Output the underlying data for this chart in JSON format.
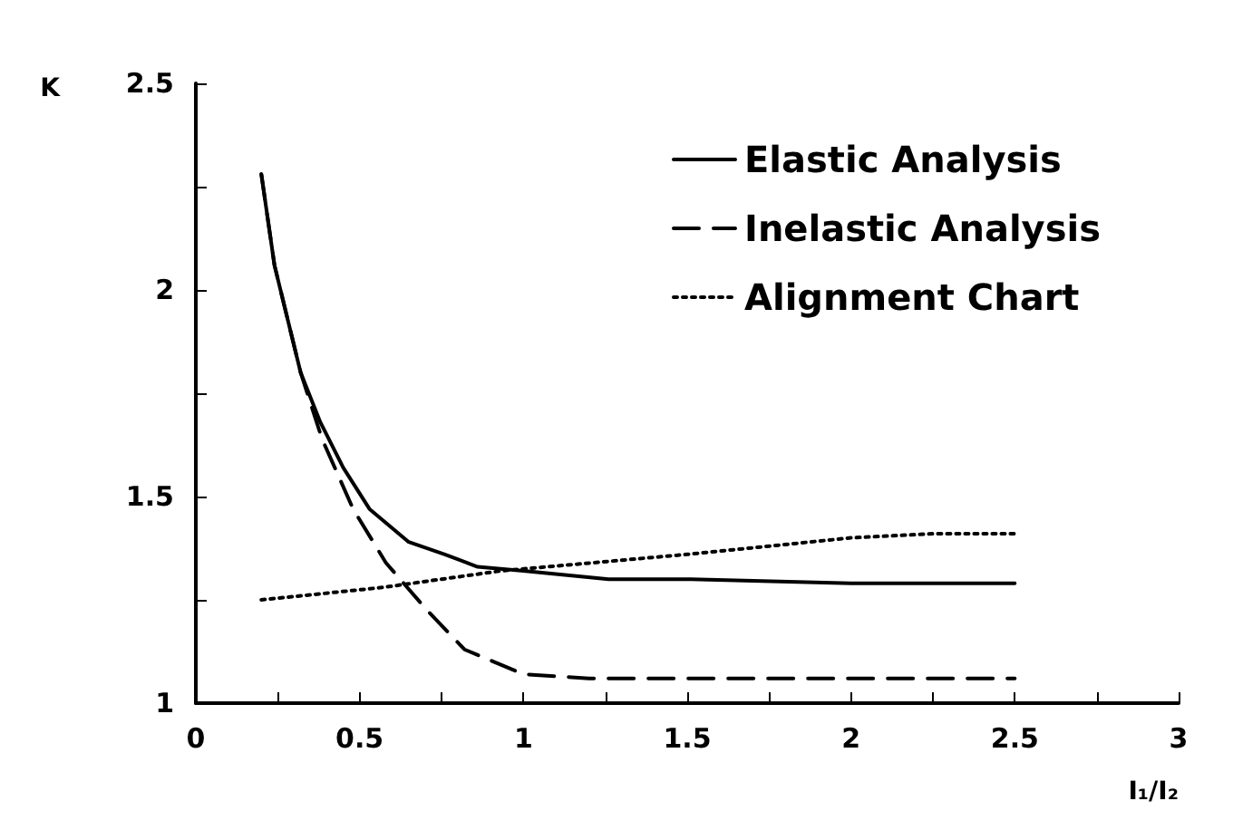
{
  "chart_data": {
    "type": "line",
    "xlabel": "I₁/I₂",
    "ylabel": "K",
    "xlim": [
      0,
      3
    ],
    "xticks": [
      0,
      {
        "value": 0.25,
        "label": null
      },
      0.5,
      {
        "value": 0.75,
        "label": null
      },
      1,
      {
        "value": 1.25,
        "label": null
      },
      1.5,
      {
        "value": 1.75,
        "label": null
      },
      2,
      {
        "value": 2.25,
        "label": null
      },
      2.5,
      {
        "value": 2.75,
        "label": null
      },
      3
    ],
    "ylim": [
      1,
      2.5
    ],
    "yticks": [
      1,
      {
        "value": 1.25,
        "label": null
      },
      1.5,
      {
        "value": 1.75,
        "label": null
      },
      2,
      {
        "value": 2.25,
        "label": null
      },
      2.5
    ],
    "grid": false,
    "legend": "top right",
    "marker": "none",
    "series": [
      {
        "name": "Elastic Analysis",
        "color": "#000000",
        "line_style": "solid",
        "x": [
          0.2,
          0.24,
          0.28,
          0.32,
          0.38,
          0.45,
          0.53,
          0.65,
          0.76,
          0.86,
          1.0,
          1.26,
          1.5,
          2.0,
          2.5
        ],
        "values": [
          2.28,
          2.06,
          1.93,
          1.8,
          1.68,
          1.57,
          1.47,
          1.39,
          1.36,
          1.33,
          1.32,
          1.3,
          1.3,
          1.29,
          1.29
        ]
      },
      {
        "name": "Inelastic Analysis",
        "color": "#000000",
        "line_style": "dashed",
        "x": [
          0.2,
          0.24,
          0.28,
          0.32,
          0.385,
          0.48,
          0.58,
          0.7,
          0.82,
          1.0,
          1.2,
          1.5,
          2.0,
          2.5
        ],
        "values": [
          2.28,
          2.06,
          1.93,
          1.8,
          1.64,
          1.47,
          1.34,
          1.23,
          1.13,
          1.07,
          1.06,
          1.06,
          1.06,
          1.06
        ]
      },
      {
        "name": "Alignment Chart",
        "color": "#000000",
        "line_style": "dotted",
        "x": [
          0.2,
          0.57,
          0.93,
          1.5,
          1.75,
          2.0,
          2.25,
          2.5
        ],
        "values": [
          1.25,
          1.28,
          1.32,
          1.36,
          1.38,
          1.4,
          1.41,
          1.41
        ]
      }
    ]
  }
}
